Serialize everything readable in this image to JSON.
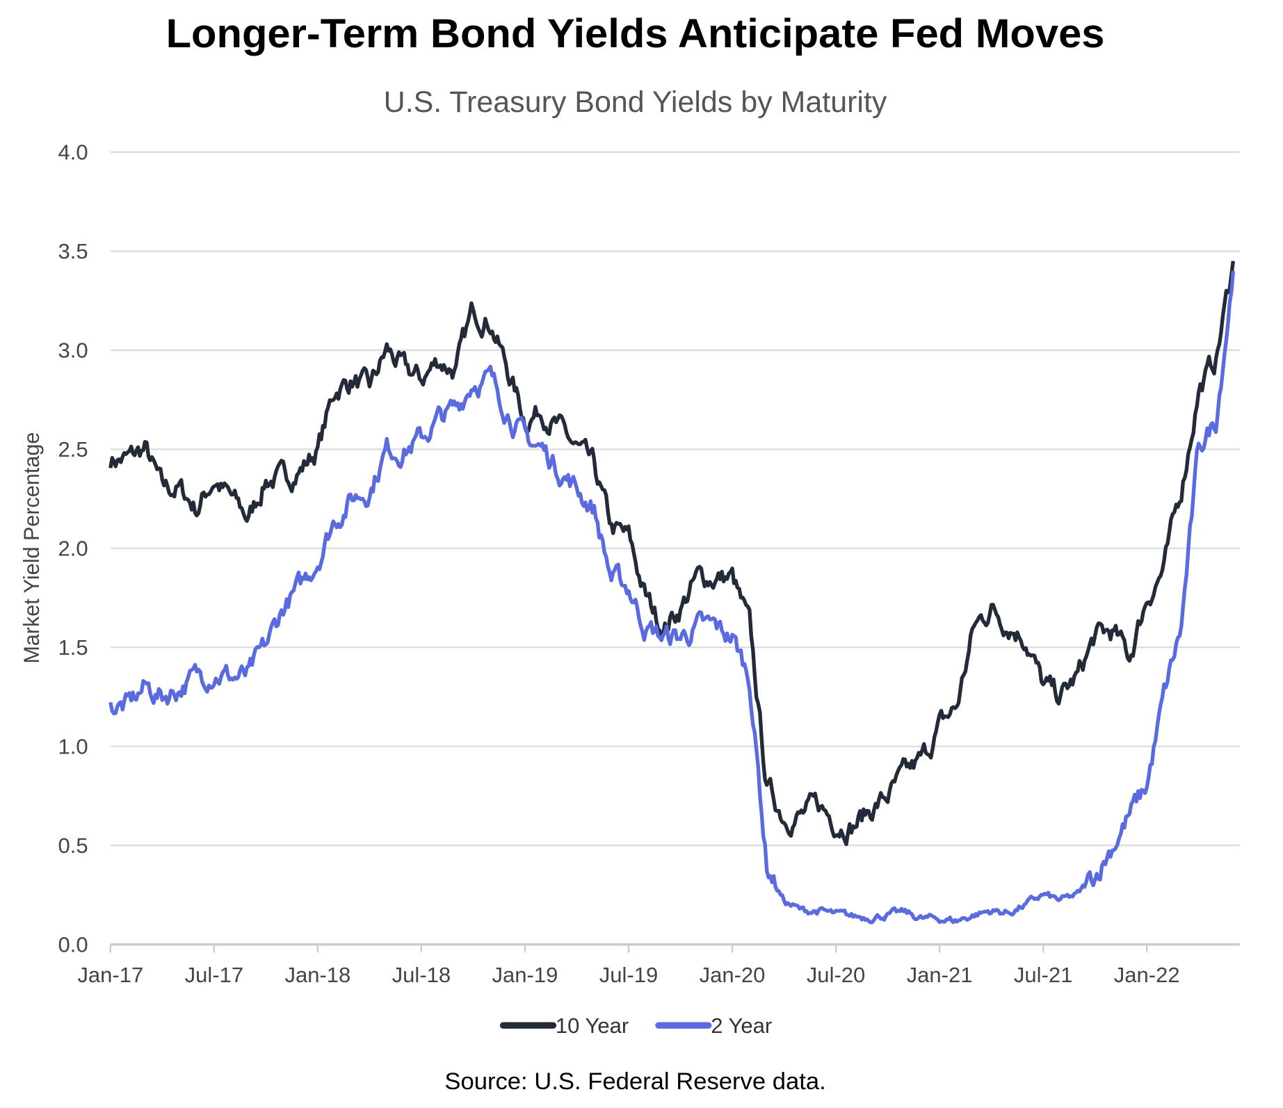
{
  "chart_data": {
    "type": "line",
    "title": "Longer-Term Bond Yields Anticipate Fed Moves",
    "subtitle": "U.S. Treasury Bond Yields by Maturity",
    "xlabel": "",
    "ylabel": "Market Yield Percentage",
    "ylim": [
      0,
      4.0
    ],
    "yticks": [
      "0.0",
      "0.5",
      "1.0",
      "1.5",
      "2.0",
      "2.5",
      "3.0",
      "3.5",
      "4.0"
    ],
    "xticks": [
      "Jan-17",
      "Jul-17",
      "Jan-18",
      "Jul-18",
      "Jan-19",
      "Jul-19",
      "Jan-20",
      "Jul-20",
      "Jan-21",
      "Jul-21",
      "Jan-22"
    ],
    "x_start": "Jan-2017",
    "x_step": "month",
    "grid": true,
    "legend_position": "bottom-center",
    "series": [
      {
        "name": "10 Year",
        "color": "#232b38",
        "values": [
          2.45,
          2.45,
          2.5,
          2.3,
          2.3,
          2.2,
          2.35,
          2.25,
          2.15,
          2.35,
          2.35,
          2.4,
          2.5,
          2.8,
          2.85,
          2.8,
          3.0,
          2.9,
          2.85,
          2.95,
          2.9,
          3.2,
          3.15,
          2.9,
          2.65,
          2.7,
          2.6,
          2.5,
          2.4,
          2.1,
          2.05,
          1.75,
          1.6,
          1.7,
          1.85,
          1.85,
          1.85,
          1.6,
          0.8,
          0.65,
          0.65,
          0.7,
          0.62,
          0.6,
          0.68,
          0.75,
          0.85,
          0.93,
          1.1,
          1.2,
          1.6,
          1.7,
          1.62,
          1.55,
          1.3,
          1.25,
          1.35,
          1.55,
          1.58,
          1.45,
          1.75,
          1.9,
          2.3,
          2.8,
          2.95,
          3.45
        ]
      },
      {
        "name": "2 Year",
        "color": "#5a6be0",
        "values": [
          1.2,
          1.2,
          1.3,
          1.25,
          1.3,
          1.35,
          1.38,
          1.35,
          1.35,
          1.5,
          1.7,
          1.8,
          1.95,
          2.15,
          2.25,
          2.3,
          2.5,
          2.5,
          2.55,
          2.65,
          2.7,
          2.85,
          2.85,
          2.7,
          2.55,
          2.5,
          2.4,
          2.3,
          2.2,
          1.85,
          1.8,
          1.6,
          1.55,
          1.55,
          1.6,
          1.6,
          1.55,
          1.35,
          0.4,
          0.22,
          0.17,
          0.17,
          0.15,
          0.14,
          0.14,
          0.15,
          0.16,
          0.13,
          0.13,
          0.12,
          0.15,
          0.17,
          0.16,
          0.2,
          0.25,
          0.22,
          0.25,
          0.35,
          0.5,
          0.65,
          0.8,
          1.25,
          1.6,
          2.5,
          2.65,
          3.4
        ]
      }
    ],
    "source": "Source: U.S. Federal Reserve data."
  }
}
